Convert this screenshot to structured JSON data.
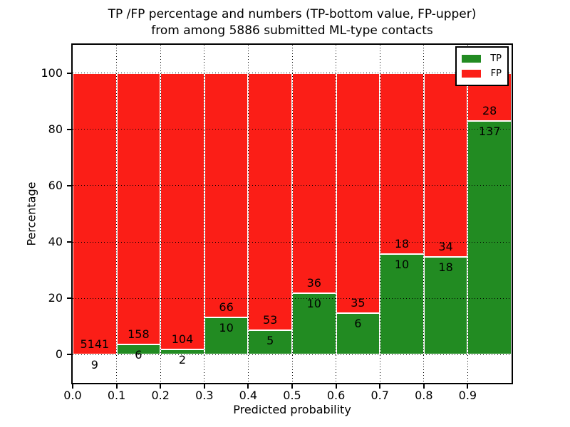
{
  "title": {
    "line1": "TP /FP percentage and numbers (TP-bottom value, FP-upper)",
    "line2": "from among 5886 submitted ML-type contacts"
  },
  "chart_data": {
    "type": "bar",
    "stacked": true,
    "normalized_to_percent": true,
    "title": "TP /FP percentage and numbers (TP-bottom value, FP-upper) from among 5886 submitted ML-type contacts",
    "xlabel": "Predicted probability",
    "ylabel": "Percentage",
    "total_contacts": 5886,
    "bins": [
      "0.0-0.1",
      "0.1-0.2",
      "0.2-0.3",
      "0.3-0.4",
      "0.4-0.5",
      "0.5-0.6",
      "0.6-0.7",
      "0.7-0.8",
      "0.8-0.9",
      "0.9-1.0"
    ],
    "bin_start": [
      0.0,
      0.1,
      0.2,
      0.3,
      0.4,
      0.5,
      0.6,
      0.7,
      0.8,
      0.9
    ],
    "bin_width": 0.1,
    "series": [
      {
        "name": "TP",
        "color": "#228b22",
        "counts": [
          9,
          6,
          2,
          10,
          5,
          10,
          6,
          10,
          18,
          137
        ]
      },
      {
        "name": "FP",
        "color": "#fb1e17",
        "counts": [
          5141,
          158,
          104,
          66,
          53,
          36,
          35,
          18,
          34,
          28
        ]
      }
    ],
    "tp_percent": [
      0.17,
      3.66,
      1.89,
      13.16,
      8.62,
      21.74,
      14.63,
      35.71,
      34.62,
      83.03
    ],
    "xlim": [
      0.0,
      1.0
    ],
    "ylim": [
      -10,
      110
    ],
    "yticks": [
      0,
      20,
      40,
      60,
      80,
      100
    ],
    "xticks": [
      0.0,
      0.1,
      0.2,
      0.3,
      0.4,
      0.5,
      0.6,
      0.7,
      0.8,
      0.9
    ],
    "xtick_labels": [
      "0.0",
      "0.1",
      "0.2",
      "0.3",
      "0.4",
      "0.5",
      "0.6",
      "0.7",
      "0.8",
      "0.9"
    ],
    "grid": true,
    "grid_style": "dotted",
    "legend_position": "upper right",
    "frame_color": "#000000",
    "bar_edge_color": "#ffffff"
  }
}
